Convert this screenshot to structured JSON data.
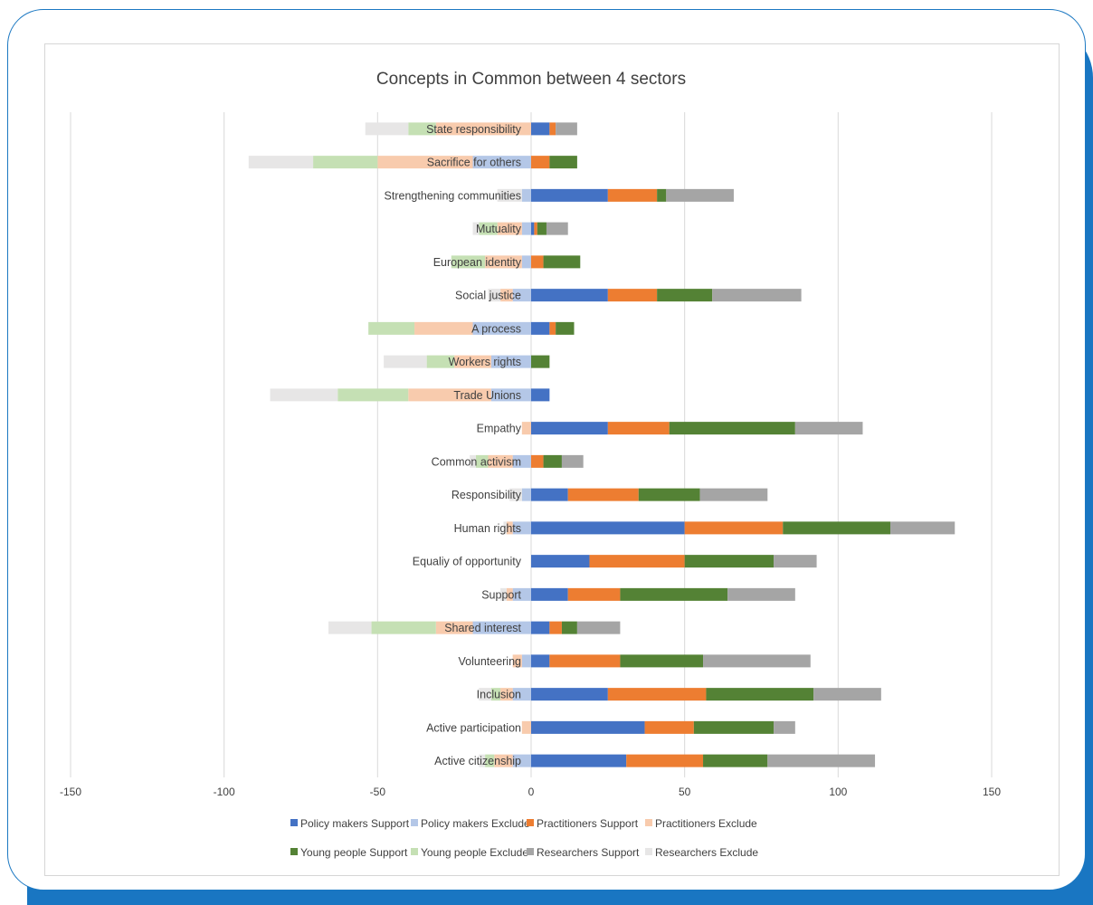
{
  "chart_data": {
    "type": "bar",
    "orientation": "horizontal",
    "stacked": true,
    "title": "Concepts in Common  between 4 sectors",
    "xlabel": "",
    "ylabel": "",
    "xlim": [
      -150,
      150
    ],
    "xticks": [
      -150,
      -100,
      -50,
      0,
      50,
      100,
      150
    ],
    "grid": true,
    "legend_position": "bottom",
    "categories": [
      "State responsibility",
      "Sacrifice for others",
      "Strengthening communities",
      "Mutuality",
      "European identity",
      "Social justice",
      "A process",
      "Workers rights",
      "Trade Unions",
      "Empathy",
      "Common activism",
      "Responsibility",
      "Human rights",
      "Equaliy of opportunity",
      "Support",
      "Shared interest",
      "Volunteering",
      "Inclusion",
      "Active participation",
      "Active citizenship"
    ],
    "series": [
      {
        "name": "Policy makers Support",
        "color": "#4472c4",
        "values": [
          6,
          0,
          25,
          1,
          0,
          25,
          6,
          0,
          6,
          25,
          0,
          12,
          50,
          19,
          12,
          6,
          6,
          25,
          37,
          31
        ]
      },
      {
        "name": "Policy makers Exclude",
        "color": "#b4c7e7",
        "values": [
          0,
          -19,
          -3,
          -3,
          -3,
          -6,
          -19,
          -13,
          -13,
          0,
          -6,
          -3,
          -6,
          0,
          -6,
          -19,
          -3,
          -6,
          0,
          -6
        ]
      },
      {
        "name": "Practitioners Support",
        "color": "#ed7d31",
        "values": [
          2,
          6,
          16,
          1,
          4,
          16,
          2,
          0,
          0,
          20,
          4,
          23,
          32,
          31,
          17,
          4,
          23,
          32,
          16,
          25
        ]
      },
      {
        "name": "Practitioners Exclude",
        "color": "#f8cbad",
        "values": [
          -31,
          -31,
          0,
          -8,
          -12,
          -4,
          -19,
          -12,
          -27,
          -3,
          -8,
          0,
          -2,
          0,
          -2,
          -12,
          -3,
          -4,
          -3,
          -6
        ]
      },
      {
        "name": "Young people Support",
        "color": "#548235",
        "values": [
          0,
          9,
          3,
          3,
          12,
          18,
          6,
          6,
          0,
          41,
          6,
          20,
          35,
          29,
          35,
          5,
          27,
          35,
          26,
          21
        ]
      },
      {
        "name": "Young people Exclude",
        "color": "#c5e0b4",
        "values": [
          -9,
          -21,
          0,
          -6,
          -11,
          0,
          -15,
          -9,
          -23,
          0,
          -4,
          0,
          0,
          0,
          0,
          -21,
          0,
          -3,
          0,
          -3
        ]
      },
      {
        "name": "Researchers Support",
        "color": "#a5a5a5",
        "values": [
          7,
          0,
          22,
          7,
          0,
          29,
          0,
          0,
          0,
          22,
          7,
          22,
          21,
          14,
          22,
          14,
          35,
          22,
          7,
          35
        ]
      },
      {
        "name": "Researchers Exclude",
        "color": "#e7e6e6",
        "values": [
          -14,
          -21,
          -8,
          -2,
          0,
          -4,
          0,
          -14,
          -22,
          0,
          -2,
          -4,
          -1,
          0,
          -2,
          -14,
          0,
          -4,
          0,
          -2
        ]
      }
    ]
  }
}
